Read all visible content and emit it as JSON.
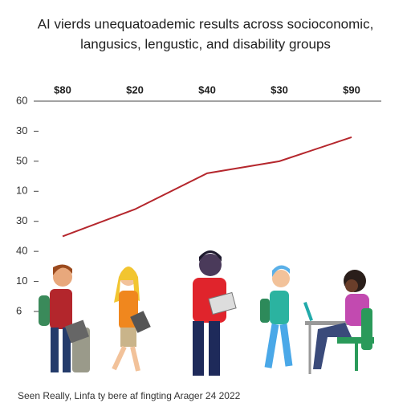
{
  "chart_data": {
    "type": "line",
    "title": [
      "AI vierds unequatoademic results across socioconomic,",
      "langusics, lengustic, and disability groups"
    ],
    "categories": [
      "$80",
      "$20",
      "$40",
      "$30",
      "$90"
    ],
    "series": [
      {
        "color": "#b5272d",
        "values": [
          2.5,
          3.4,
          4.6,
          5.0,
          5.8
        ]
      }
    ],
    "ylim": [
      0,
      7
    ],
    "yticks": [
      {
        "value": 0,
        "label": "6"
      },
      {
        "value": 1,
        "label": "10"
      },
      {
        "value": 2,
        "label": "40"
      },
      {
        "value": 3,
        "label": "30"
      },
      {
        "value": 4,
        "label": "10"
      },
      {
        "value": 5,
        "label": "50"
      },
      {
        "value": 6,
        "label": "30"
      },
      {
        "value": 7,
        "label": "60"
      }
    ],
    "source": "Seen Really, Linfa ty bere af fingting Arager 24 2022"
  }
}
